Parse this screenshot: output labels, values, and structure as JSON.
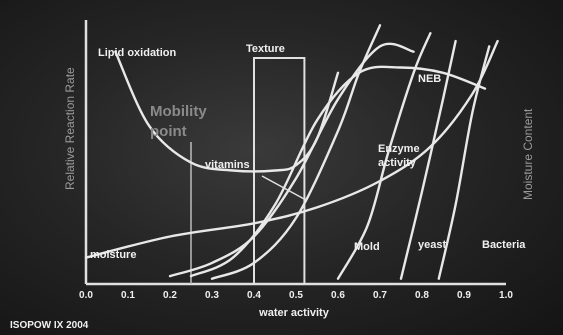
{
  "chart_data": {
    "type": "line",
    "xlabel": "water activity",
    "ylabel_left": "Relative Reaction Rate",
    "ylabel_right": "Moisture Content",
    "x_ticks": [
      "0.0",
      "0.1",
      "0.2",
      "0.3",
      "0.4",
      "0.5",
      "0.6",
      "0.7",
      "0.8",
      "0.9",
      "1.0"
    ],
    "xlim": [
      0,
      1
    ],
    "grid": false,
    "texture_band": [
      0.4,
      0.52
    ],
    "mobility_point": 0.25,
    "series": [
      {
        "name": "Lipid oxidation",
        "x": [
          0.07,
          0.15,
          0.25,
          0.35,
          0.45,
          0.5,
          0.55,
          0.6
        ],
        "y": [
          0.88,
          0.6,
          0.46,
          0.43,
          0.43,
          0.45,
          0.55,
          0.8
        ]
      },
      {
        "name": "moisture",
        "x": [
          0.0,
          0.2,
          0.4,
          0.55,
          0.7,
          0.82,
          0.92,
          0.98
        ],
        "y": [
          0.1,
          0.18,
          0.23,
          0.29,
          0.39,
          0.52,
          0.72,
          0.92
        ]
      },
      {
        "name": "vitamins",
        "x": [
          0.2,
          0.3,
          0.4,
          0.5,
          0.6,
          0.7,
          0.78
        ],
        "y": [
          0.03,
          0.08,
          0.18,
          0.4,
          0.7,
          0.9,
          0.88
        ]
      },
      {
        "name": "NEB",
        "x": [
          0.25,
          0.35,
          0.45,
          0.55,
          0.65,
          0.75,
          0.85,
          0.95
        ],
        "y": [
          0.03,
          0.1,
          0.3,
          0.62,
          0.8,
          0.82,
          0.8,
          0.74
        ]
      },
      {
        "name": "Enzyme activity",
        "x": [
          0.3,
          0.4,
          0.5,
          0.6,
          0.65,
          0.7
        ],
        "y": [
          0.02,
          0.08,
          0.25,
          0.58,
          0.8,
          0.98
        ]
      },
      {
        "name": "Mold",
        "x": [
          0.6,
          0.67,
          0.72,
          0.78,
          0.82
        ],
        "y": [
          0.02,
          0.22,
          0.5,
          0.8,
          0.95
        ]
      },
      {
        "name": "yeast",
        "x": [
          0.75,
          0.8,
          0.85,
          0.88
        ],
        "y": [
          0.02,
          0.35,
          0.7,
          0.92
        ]
      },
      {
        "name": "Bacteria",
        "x": [
          0.84,
          0.88,
          0.92,
          0.96
        ],
        "y": [
          0.02,
          0.3,
          0.65,
          0.9
        ]
      }
    ]
  },
  "labels": {
    "lipid": "Lipid oxidation",
    "texture": "Texture",
    "mobility": "Mobility point",
    "vitamins": "vitamins",
    "neb": "NEB",
    "enzyme": "Enzyme activity",
    "moisture": "moisture",
    "mold": "Mold",
    "yeast": "yeast",
    "bacteria": "Bacteria"
  },
  "footer": "ISOPOW IX 2004"
}
